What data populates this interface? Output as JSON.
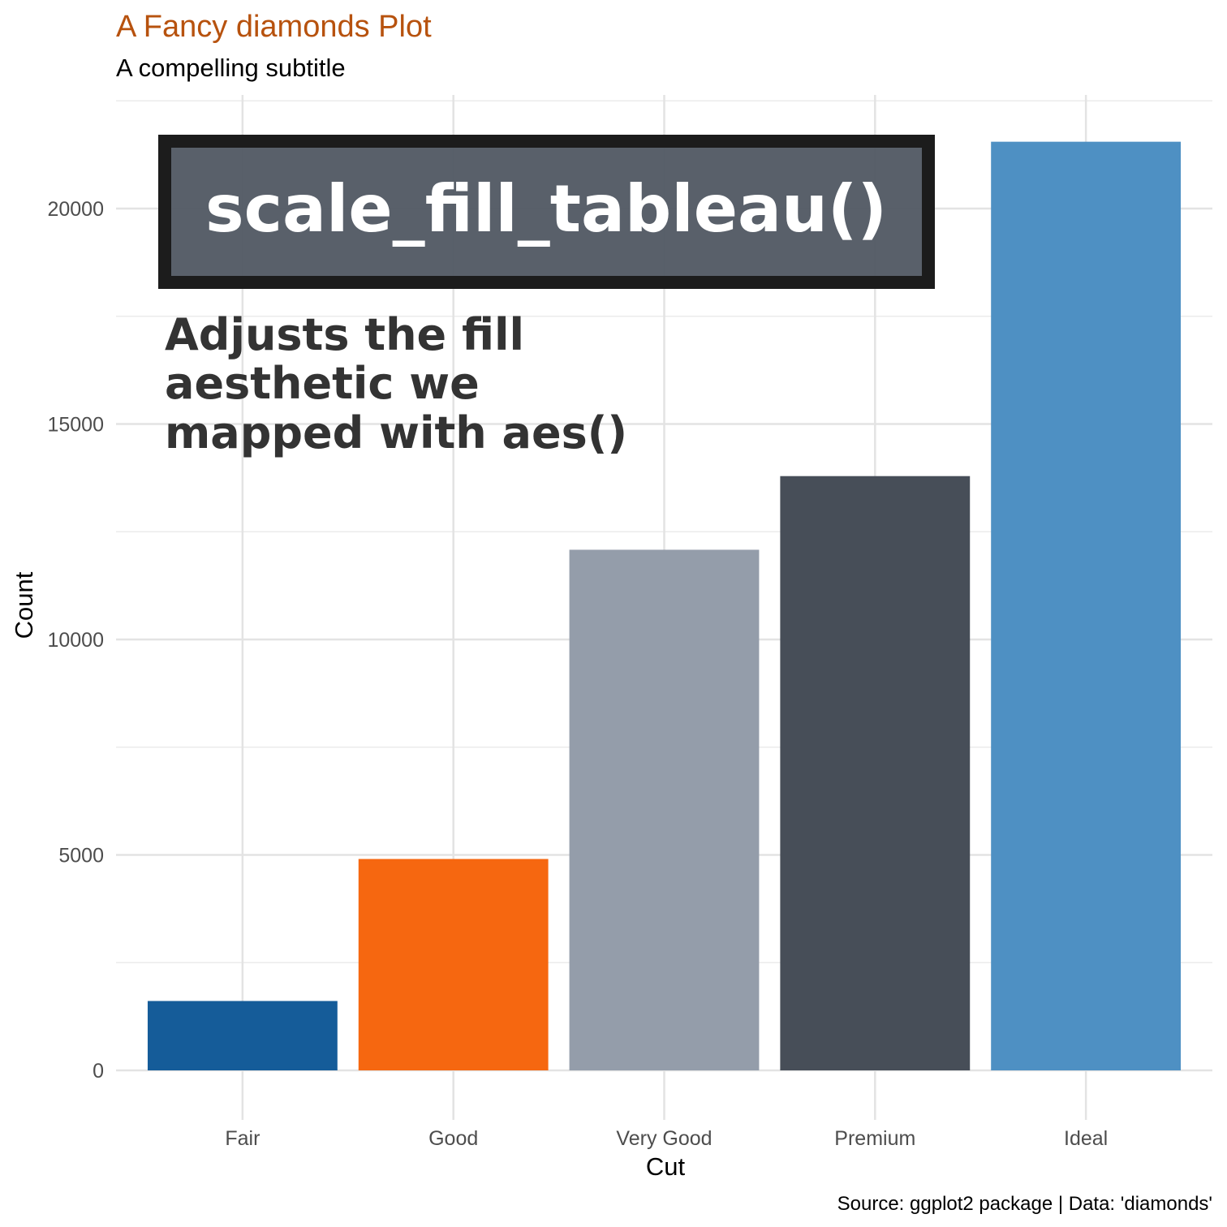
{
  "chart_data": {
    "type": "bar",
    "title": "A Fancy diamonds Plot",
    "subtitle": "A compelling subtitle",
    "xlabel": "Cut",
    "ylabel": "Count",
    "caption": "Source: ggplot2 package | Data: 'diamonds'",
    "categories": [
      "Fair",
      "Good",
      "Very Good",
      "Premium",
      "Ideal"
    ],
    "values": [
      1610,
      4906,
      12082,
      13791,
      21551
    ],
    "colors": [
      "#155C99",
      "#F66710",
      "#949DAA",
      "#474E58",
      "#4E90C3"
    ],
    "ylim": [
      0,
      22500
    ],
    "yticks": [
      0,
      5000,
      10000,
      15000,
      20000
    ],
    "grid": true,
    "legend": "none",
    "annotations": {
      "banner": "scale_fill_tableau()",
      "note_lines": [
        "Adjusts the fill",
        "aesthetic we",
        "mapped with aes()"
      ]
    }
  }
}
